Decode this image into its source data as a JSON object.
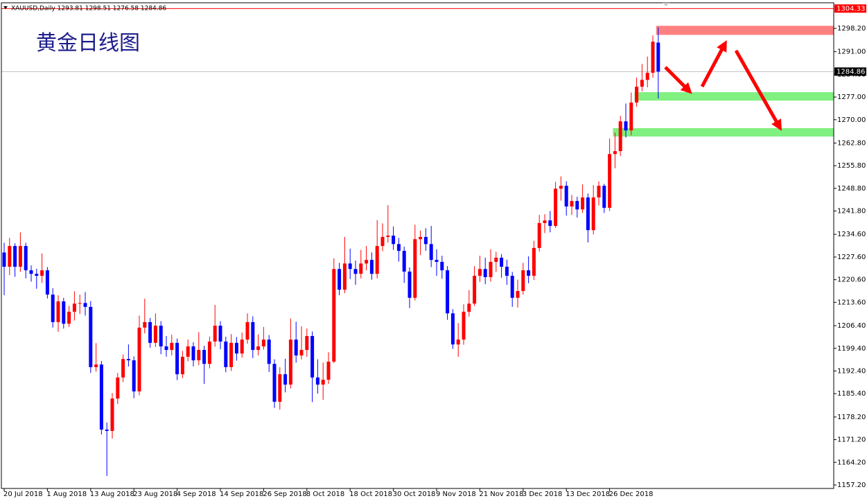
{
  "chart_data": {
    "type": "candlestick",
    "header": "XAUUSD,Daily  1293.81 1298.51 1276.58 1284.86",
    "title": "黄金日线图",
    "categories": [
      "20 Jul 2018",
      null,
      null,
      null,
      null,
      null,
      null,
      null,
      "1 Aug 2018",
      null,
      null,
      null,
      null,
      null,
      null,
      null,
      "13 Aug 2018",
      null,
      null,
      null,
      null,
      null,
      null,
      null,
      "23 Aug 2018",
      null,
      null,
      null,
      null,
      null,
      null,
      null,
      "4 Sep 2018",
      null,
      null,
      null,
      null,
      null,
      null,
      null,
      "14 Sep 2018",
      null,
      null,
      null,
      null,
      null,
      null,
      null,
      "26 Sep 2018",
      null,
      null,
      null,
      null,
      null,
      null,
      null,
      "8 Oct 2018",
      null,
      null,
      null,
      null,
      null,
      null,
      null,
      "18 Oct 2018",
      null,
      null,
      null,
      null,
      null,
      null,
      null,
      "30 Oct 2018",
      null,
      null,
      null,
      null,
      null,
      null,
      null,
      "9 Nov 2018",
      null,
      null,
      null,
      null,
      null,
      null,
      null,
      "21 Nov 2018",
      null,
      null,
      null,
      null,
      null,
      null,
      null,
      "3 Dec 2018",
      null,
      null,
      null,
      null,
      null,
      null,
      null,
      "13 Dec 2018",
      null,
      null,
      null,
      null,
      null,
      null,
      null,
      "26 Dec 2018",
      null,
      null,
      null,
      null,
      null,
      null,
      null,
      null,
      null
    ],
    "open": [
      1229.0,
      1224.6,
      1231.0,
      1224.6,
      1231.0,
      1223.5,
      1222.4,
      1221.8,
      1223.5,
      1216.0,
      1207.5,
      1213.9,
      1207.0,
      1210.7,
      1213.2,
      1213.4,
      1212.2,
      1193.6,
      1194.4,
      1174.3,
      1173.9,
      1183.9,
      1190.4,
      1196.1,
      1195.7,
      1186.1,
      1205.8,
      1207.5,
      1201.1,
      1206.4,
      1200.0,
      1198.9,
      1201.1,
      1191.4,
      1196.8,
      1200.0,
      1195.7,
      1198.9,
      1194.6,
      1201.5,
      1206.4,
      1201.5,
      1193.6,
      1201.1,
      1197.8,
      1202.1,
      1207.5,
      1198.9,
      1200.0,
      1202.1,
      1194.6,
      1182.9,
      1191.4,
      1188.2,
      1202.1,
      1197.2,
      1198.9,
      1203.2,
      1190.4,
      1188.2,
      1189.7,
      1195.3,
      1223.9,
      1217.5,
      1225.6,
      1223.9,
      1222.4,
      1225.6,
      1226.7,
      1222.4,
      1231.0,
      1233.8,
      1234.2,
      1231.6,
      1229.5,
      1223.1,
      1215.0,
      1233.1,
      1233.8,
      1231.6,
      1226.7,
      1226.1,
      1223.5,
      1210.2,
      1200.6,
      1202.1,
      1210.7,
      1213.2,
      1221.8,
      1223.9,
      1221.4,
      1226.1,
      1227.4,
      1224.6,
      1221.8,
      1215.0,
      1217.1,
      1223.5,
      1221.8,
      1230.4,
      1238.1,
      1238.9,
      1237.2,
      1248.7,
      1249.6,
      1243.2,
      1244.9,
      1242.3,
      1246.0,
      1235.9,
      1246.0,
      1249.6,
      1242.8,
      1259.4,
      1260.3,
      1269.5,
      1266.7,
      1275.3,
      1280.2,
      1282.3,
      1284.5,
      1293.81
    ],
    "high": [
      1232.0,
      1233.5,
      1231.8,
      1235.2,
      1232.0,
      1225.0,
      1224.0,
      1228.7,
      1224.5,
      1218.0,
      1215.8,
      1215.0,
      1212.5,
      1217.0,
      1216.0,
      1216.8,
      1214.0,
      1201.0,
      1195.5,
      1176.5,
      1185.6,
      1191.8,
      1197.5,
      1200.6,
      1196.9,
      1209.5,
      1214.7,
      1208.8,
      1210.2,
      1207.8,
      1203.2,
      1203.6,
      1202.4,
      1198.6,
      1202.1,
      1201.3,
      1204.4,
      1200.2,
      1203.0,
      1212.8,
      1207.8,
      1203.0,
      1203.8,
      1202.9,
      1204.3,
      1210.2,
      1209.3,
      1203.7,
      1206.0,
      1203.5,
      1196.0,
      1193.6,
      1196.2,
      1208.6,
      1207.6,
      1206.2,
      1205.5,
      1204.6,
      1196.0,
      1195.0,
      1198.2,
      1227.2,
      1225.8,
      1233.8,
      1230.2,
      1226.5,
      1229.8,
      1231.0,
      1229.0,
      1239.0,
      1238.0,
      1243.6,
      1237.0,
      1233.5,
      1230.8,
      1224.4,
      1237.6,
      1235.8,
      1236.5,
      1237.2,
      1230.0,
      1228.0,
      1224.8,
      1211.5,
      1207.2,
      1213.0,
      1217.4,
      1224.8,
      1228.0,
      1227.4,
      1230.0,
      1229.2,
      1228.5,
      1226.8,
      1223.0,
      1220.6,
      1225.8,
      1227.8,
      1232.6,
      1240.6,
      1240.8,
      1241.8,
      1250.8,
      1252.5,
      1251.0,
      1246.8,
      1246.2,
      1250.0,
      1247.2,
      1249.8,
      1251.0,
      1250.2,
      1264.2,
      1266.0,
      1271.2,
      1275.0,
      1278.4,
      1283.0,
      1287.2,
      1289.5,
      1296.0,
      1298.51
    ],
    "low": [
      1215.8,
      1222.0,
      1221.5,
      1223.0,
      1221.0,
      1220.0,
      1217.8,
      1219.6,
      1214.8,
      1205.8,
      1204.5,
      1205.5,
      1206.0,
      1208.0,
      1210.0,
      1209.5,
      1191.8,
      1192.2,
      1172.8,
      1160.0,
      1171.5,
      1182.2,
      1189.0,
      1193.8,
      1184.0,
      1184.9,
      1204.0,
      1199.6,
      1199.8,
      1197.6,
      1196.8,
      1197.2,
      1189.6,
      1190.2,
      1195.4,
      1193.8,
      1194.2,
      1188.4,
      1193.2,
      1199.9,
      1199.1,
      1192.0,
      1192.4,
      1195.6,
      1196.5,
      1200.8,
      1196.4,
      1197.2,
      1199.0,
      1192.1,
      1181.0,
      1180.5,
      1185.8,
      1187.0,
      1195.0,
      1196.0,
      1196.8,
      1182.8,
      1185.4,
      1183.5,
      1188.4,
      1194.8,
      1215.8,
      1216.4,
      1220.8,
      1219.0,
      1221.0,
      1223.5,
      1220.6,
      1221.0,
      1229.4,
      1232.0,
      1229.8,
      1226.2,
      1219.6,
      1211.8,
      1214.2,
      1228.2,
      1229.5,
      1224.5,
      1221.8,
      1220.9,
      1208.2,
      1199.2,
      1196.8,
      1200.5,
      1209.2,
      1212.5,
      1219.9,
      1219.2,
      1220.0,
      1223.0,
      1221.2,
      1219.0,
      1212.2,
      1212.0,
      1216.0,
      1219.5,
      1220.5,
      1229.3,
      1235.0,
      1235.2,
      1236.6,
      1245.0,
      1240.4,
      1240.6,
      1239.8,
      1241.2,
      1232.1,
      1234.6,
      1243.5,
      1241.2,
      1241.8,
      1255.0,
      1258.8,
      1264.5,
      1265.2,
      1274.0,
      1278.8,
      1280.0,
      1283.0,
      1276.58
    ],
    "close": [
      1224.6,
      1231.0,
      1224.6,
      1231.0,
      1223.5,
      1222.4,
      1221.8,
      1223.5,
      1216.0,
      1207.5,
      1213.9,
      1207.0,
      1210.7,
      1213.2,
      1213.4,
      1212.2,
      1193.6,
      1194.4,
      1174.3,
      1173.9,
      1183.9,
      1190.4,
      1196.1,
      1195.7,
      1186.1,
      1205.8,
      1207.5,
      1201.1,
      1206.4,
      1200.0,
      1198.9,
      1201.1,
      1191.4,
      1196.8,
      1200.0,
      1195.7,
      1198.9,
      1194.6,
      1201.5,
      1206.4,
      1201.5,
      1193.6,
      1201.1,
      1197.8,
      1202.1,
      1207.5,
      1198.9,
      1200.0,
      1202.1,
      1194.6,
      1182.9,
      1191.4,
      1188.2,
      1202.1,
      1197.2,
      1198.9,
      1203.2,
      1190.4,
      1188.2,
      1189.7,
      1195.3,
      1223.9,
      1217.5,
      1225.6,
      1223.9,
      1222.4,
      1225.6,
      1226.7,
      1222.4,
      1231.0,
      1233.8,
      1234.2,
      1231.6,
      1229.5,
      1223.1,
      1215.0,
      1233.1,
      1233.8,
      1231.6,
      1226.7,
      1226.1,
      1223.5,
      1210.2,
      1200.6,
      1202.1,
      1210.7,
      1213.2,
      1221.8,
      1223.9,
      1221.4,
      1226.1,
      1227.4,
      1224.6,
      1221.8,
      1215.0,
      1217.1,
      1223.5,
      1221.8,
      1230.4,
      1238.1,
      1238.9,
      1237.2,
      1248.7,
      1249.6,
      1243.2,
      1244.9,
      1242.3,
      1246.0,
      1235.9,
      1246.0,
      1249.6,
      1242.8,
      1259.4,
      1260.3,
      1269.5,
      1266.7,
      1275.3,
      1280.2,
      1282.3,
      1284.5,
      1294.1,
      1284.86
    ],
    "up_color": "#ff0000",
    "down_color": "#0000ff",
    "ylim": [
      1156.13,
      1304.83
    ],
    "yticks": [
      {
        "value": 1157.2,
        "label": "1157.20"
      },
      {
        "value": 1164.2,
        "label": "1164.20"
      },
      {
        "value": 1171.2,
        "label": "1171.20"
      },
      {
        "value": 1178.2,
        "label": "1178.20"
      },
      {
        "value": 1185.4,
        "label": "1185.40"
      },
      {
        "value": 1192.4,
        "label": "1192.40"
      },
      {
        "value": 1199.4,
        "label": "1199.40"
      },
      {
        "value": 1206.4,
        "label": "1206.40"
      },
      {
        "value": 1213.6,
        "label": "1213.60"
      },
      {
        "value": 1220.6,
        "label": "1220.60"
      },
      {
        "value": 1227.6,
        "label": "1227.60"
      },
      {
        "value": 1234.6,
        "label": "1234.60"
      },
      {
        "value": 1241.8,
        "label": "1241.80"
      },
      {
        "value": 1248.8,
        "label": "1248.80"
      },
      {
        "value": 1255.8,
        "label": "1255.80"
      },
      {
        "value": 1262.8,
        "label": "1262.80"
      },
      {
        "value": 1270,
        "label": "1270.00"
      },
      {
        "value": 1277,
        "label": "1277.00"
      },
      {
        "value": 1284,
        "label": "1284.00"
      },
      {
        "value": 1291,
        "label": "1291.00"
      },
      {
        "value": 1298.2,
        "label": "1298.20"
      }
    ],
    "price_lines": [
      {
        "value": 1284.86,
        "color": "#c0c0c0",
        "label_color": "#000000"
      },
      {
        "value": 1304.33,
        "color": "#ff0000",
        "label_color": "#ff0000"
      }
    ],
    "zones": [
      {
        "from": 1296.2,
        "to": 1299.0,
        "start": 121,
        "color": "#ff8080"
      },
      {
        "from": 1275.9,
        "to": 1278.5,
        "start": 117,
        "color": "#80f080"
      },
      {
        "from": 1264.8,
        "to": 1267.4,
        "start": 113,
        "color": "#80f080"
      }
    ]
  }
}
